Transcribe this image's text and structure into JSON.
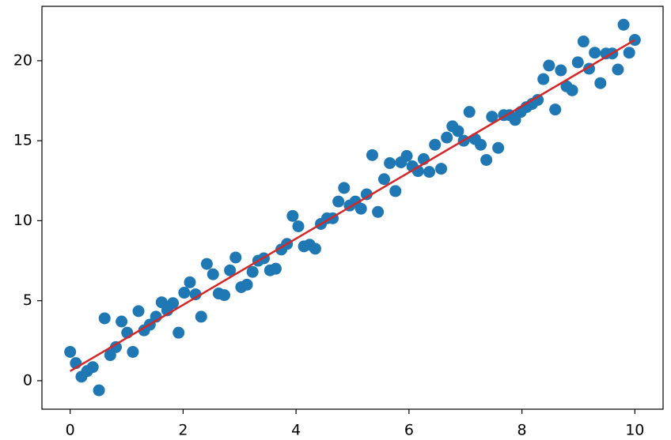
{
  "chart_data": {
    "type": "scatter",
    "x": [
      0,
      0.1,
      0.2,
      0.3,
      0.4,
      0.51,
      0.61,
      0.71,
      0.81,
      0.91,
      1.01,
      1.11,
      1.21,
      1.31,
      1.41,
      1.52,
      1.62,
      1.72,
      1.82,
      1.92,
      2.02,
      2.12,
      2.22,
      2.32,
      2.42,
      2.53,
      2.63,
      2.73,
      2.83,
      2.93,
      3.03,
      3.13,
      3.23,
      3.33,
      3.43,
      3.54,
      3.64,
      3.74,
      3.84,
      3.94,
      4.04,
      4.14,
      4.24,
      4.34,
      4.44,
      4.55,
      4.65,
      4.75,
      4.85,
      4.95,
      5.05,
      5.15,
      5.25,
      5.35,
      5.45,
      5.56,
      5.66,
      5.76,
      5.86,
      5.96,
      6.06,
      6.16,
      6.26,
      6.36,
      6.46,
      6.57,
      6.67,
      6.77,
      6.87,
      6.97,
      7.07,
      7.17,
      7.27,
      7.37,
      7.47,
      7.58,
      7.68,
      7.78,
      7.88,
      7.98,
      8.08,
      8.18,
      8.28,
      8.38,
      8.48,
      8.59,
      8.69,
      8.79,
      8.89,
      8.99,
      9.09,
      9.19,
      9.29,
      9.39,
      9.49,
      9.6,
      9.7,
      9.8,
      9.9,
      10
    ],
    "values": [
      1.8,
      1.1,
      0.25,
      0.6,
      0.85,
      -0.6,
      3.9,
      1.6,
      2.1,
      3.7,
      3.0,
      1.8,
      4.35,
      3.15,
      3.5,
      4.0,
      4.9,
      4.4,
      4.85,
      3.0,
      5.5,
      6.15,
      5.4,
      4.0,
      7.3,
      6.65,
      5.45,
      5.35,
      6.9,
      7.7,
      5.85,
      6.0,
      6.8,
      7.5,
      7.65,
      6.9,
      7.0,
      8.2,
      8.55,
      10.3,
      9.65,
      8.4,
      8.5,
      8.25,
      9.8,
      10.15,
      10.15,
      11.2,
      12.05,
      10.95,
      11.2,
      10.75,
      11.65,
      14.1,
      10.55,
      12.6,
      13.6,
      11.85,
      13.65,
      14.05,
      13.4,
      13.1,
      13.85,
      13.05,
      14.75,
      13.25,
      15.2,
      15.9,
      15.6,
      15.0,
      16.8,
      15.1,
      14.75,
      13.8,
      16.5,
      14.55,
      16.6,
      16.6,
      16.3,
      16.8,
      17.1,
      17.3,
      17.55,
      18.85,
      19.7,
      16.95,
      19.4,
      18.4,
      18.15,
      19.9,
      21.2,
      19.5,
      20.5,
      18.6,
      20.45,
      20.45,
      19.45,
      22.25,
      20.5,
      21.3
    ],
    "color": "#1f77b4",
    "line": {
      "x": [
        0,
        10
      ],
      "values": [
        0.6,
        21.3
      ],
      "color": "#d62728"
    },
    "xlim": [
      -0.5,
      10.5
    ],
    "ylim": [
      -1.78,
      23.4
    ],
    "xticks": [
      0,
      2,
      4,
      6,
      8,
      10
    ],
    "yticks": [
      0,
      5,
      10,
      15,
      20
    ]
  }
}
